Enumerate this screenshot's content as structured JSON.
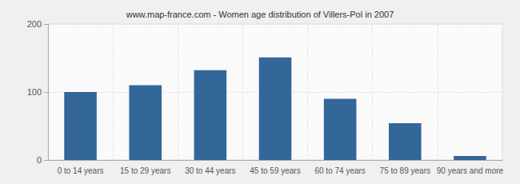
{
  "chart_data": {
    "type": "bar",
    "title": "www.map-france.com - Women age distribution of Villers-Pol in 2007",
    "categories": [
      "0 to 14 years",
      "15 to 29 years",
      "30 to 44 years",
      "45 to 59 years",
      "60 to 74 years",
      "75 to 89 years",
      "90 years and more"
    ],
    "values": [
      100,
      110,
      132,
      151,
      90,
      54,
      6
    ],
    "color": "#336699",
    "ylim": [
      0,
      200
    ],
    "yticks": [
      0,
      100,
      200
    ],
    "grid": true
  }
}
